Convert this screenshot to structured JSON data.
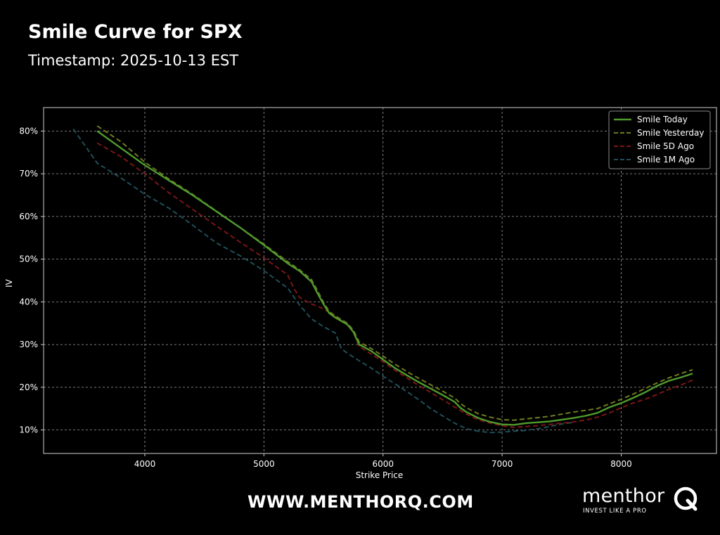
{
  "header": {
    "title": "Smile Curve for SPX",
    "subtitle": "Timestamp: 2025-10-13 EST"
  },
  "footer": {
    "url": "WWW.MENTHORQ.COM",
    "brand_name": "menthor",
    "brand_tagline": "INVEST LIKE A PRO",
    "brand_logo": "q-magnifier-logo-icon"
  },
  "colors": {
    "background": "#000000",
    "frame": "#d0d0d0",
    "grid": "#bdbdbd",
    "text": "#ffffff"
  },
  "chart_data": {
    "type": "line",
    "title": "",
    "xlabel": "Strike Price",
    "ylabel": "IV",
    "xlim": [
      3150,
      8800
    ],
    "ylim": [
      0.045,
      0.855
    ],
    "xticks": [
      4000,
      5000,
      6000,
      7000,
      8000
    ],
    "xtick_labels": [
      "4000",
      "5000",
      "6000",
      "7000",
      "8000"
    ],
    "yticks": [
      0.1,
      0.2,
      0.3,
      0.4,
      0.5,
      0.6,
      0.7,
      0.8
    ],
    "ytick_labels": [
      "10%",
      "20%",
      "30%",
      "40%",
      "50%",
      "60%",
      "70%",
      "80%"
    ],
    "grid": true,
    "grid_style": "dashed",
    "legend_position": "top-right",
    "series": [
      {
        "name": "Smile Today",
        "color": "#4f9a2c",
        "style": "solid",
        "points": [
          [
            3600,
            0.8
          ],
          [
            3800,
            0.76
          ],
          [
            4000,
            0.72
          ],
          [
            4200,
            0.685
          ],
          [
            4400,
            0.65
          ],
          [
            4600,
            0.612
          ],
          [
            4800,
            0.574
          ],
          [
            5000,
            0.533
          ],
          [
            5200,
            0.49
          ],
          [
            5300,
            0.472
          ],
          [
            5400,
            0.447
          ],
          [
            5450,
            0.42
          ],
          [
            5500,
            0.395
          ],
          [
            5550,
            0.373
          ],
          [
            5600,
            0.363
          ],
          [
            5700,
            0.347
          ],
          [
            5750,
            0.33
          ],
          [
            5800,
            0.3
          ],
          [
            5900,
            0.285
          ],
          [
            6000,
            0.265
          ],
          [
            6100,
            0.245
          ],
          [
            6200,
            0.228
          ],
          [
            6300,
            0.212
          ],
          [
            6400,
            0.197
          ],
          [
            6500,
            0.182
          ],
          [
            6600,
            0.166
          ],
          [
            6650,
            0.152
          ],
          [
            6700,
            0.142
          ],
          [
            6800,
            0.128
          ],
          [
            6900,
            0.119
          ],
          [
            7000,
            0.113
          ],
          [
            7100,
            0.112
          ],
          [
            7200,
            0.116
          ],
          [
            7300,
            0.118
          ],
          [
            7400,
            0.12
          ],
          [
            7500,
            0.124
          ],
          [
            7600,
            0.128
          ],
          [
            7700,
            0.133
          ],
          [
            7800,
            0.14
          ],
          [
            7900,
            0.153
          ],
          [
            8000,
            0.163
          ],
          [
            8100,
            0.175
          ],
          [
            8200,
            0.188
          ],
          [
            8300,
            0.203
          ],
          [
            8400,
            0.215
          ],
          [
            8500,
            0.223
          ],
          [
            8600,
            0.232
          ]
        ]
      },
      {
        "name": "Smile Yesterday",
        "color": "#6f7a1e",
        "style": "dashed",
        "points": [
          [
            3600,
            0.812
          ],
          [
            3800,
            0.775
          ],
          [
            4000,
            0.727
          ],
          [
            4200,
            0.688
          ],
          [
            4400,
            0.652
          ],
          [
            4600,
            0.613
          ],
          [
            4800,
            0.574
          ],
          [
            5000,
            0.535
          ],
          [
            5200,
            0.494
          ],
          [
            5300,
            0.475
          ],
          [
            5400,
            0.452
          ],
          [
            5450,
            0.426
          ],
          [
            5500,
            0.399
          ],
          [
            5550,
            0.377
          ],
          [
            5600,
            0.367
          ],
          [
            5700,
            0.35
          ],
          [
            5750,
            0.334
          ],
          [
            5800,
            0.306
          ],
          [
            5900,
            0.291
          ],
          [
            6000,
            0.273
          ],
          [
            6100,
            0.254
          ],
          [
            6200,
            0.237
          ],
          [
            6300,
            0.221
          ],
          [
            6400,
            0.206
          ],
          [
            6500,
            0.191
          ],
          [
            6600,
            0.175
          ],
          [
            6650,
            0.162
          ],
          [
            6700,
            0.152
          ],
          [
            6800,
            0.138
          ],
          [
            6900,
            0.13
          ],
          [
            7000,
            0.124
          ],
          [
            7100,
            0.123
          ],
          [
            7200,
            0.126
          ],
          [
            7300,
            0.129
          ],
          [
            7400,
            0.132
          ],
          [
            7500,
            0.137
          ],
          [
            7600,
            0.142
          ],
          [
            7700,
            0.146
          ],
          [
            7800,
            0.15
          ],
          [
            7900,
            0.161
          ],
          [
            8000,
            0.172
          ],
          [
            8100,
            0.184
          ],
          [
            8200,
            0.197
          ],
          [
            8300,
            0.21
          ],
          [
            8400,
            0.222
          ],
          [
            8500,
            0.232
          ],
          [
            8600,
            0.241
          ]
        ]
      },
      {
        "name": "Smile 5D Ago",
        "color": "#7a1616",
        "style": "dashed",
        "points": [
          [
            3600,
            0.772
          ],
          [
            3800,
            0.74
          ],
          [
            4000,
            0.7
          ],
          [
            4200,
            0.656
          ],
          [
            4400,
            0.617
          ],
          [
            4600,
            0.578
          ],
          [
            4800,
            0.54
          ],
          [
            5000,
            0.503
          ],
          [
            5200,
            0.463
          ],
          [
            5250,
            0.432
          ],
          [
            5300,
            0.41
          ],
          [
            5400,
            0.395
          ],
          [
            5500,
            0.384
          ],
          [
            5600,
            0.365
          ],
          [
            5700,
            0.348
          ],
          [
            5750,
            0.33
          ],
          [
            5800,
            0.295
          ],
          [
            5900,
            0.278
          ],
          [
            6000,
            0.26
          ],
          [
            6100,
            0.24
          ],
          [
            6200,
            0.222
          ],
          [
            6300,
            0.204
          ],
          [
            6400,
            0.188
          ],
          [
            6500,
            0.171
          ],
          [
            6600,
            0.154
          ],
          [
            6700,
            0.137
          ],
          [
            6800,
            0.124
          ],
          [
            6900,
            0.116
          ],
          [
            7000,
            0.11
          ],
          [
            7100,
            0.106
          ],
          [
            7200,
            0.108
          ],
          [
            7300,
            0.11
          ],
          [
            7400,
            0.113
          ],
          [
            7500,
            0.116
          ],
          [
            7600,
            0.119
          ],
          [
            7700,
            0.123
          ],
          [
            7800,
            0.13
          ],
          [
            7900,
            0.14
          ],
          [
            8000,
            0.152
          ],
          [
            8100,
            0.163
          ],
          [
            8200,
            0.172
          ],
          [
            8300,
            0.183
          ],
          [
            8400,
            0.195
          ],
          [
            8500,
            0.205
          ],
          [
            8600,
            0.217
          ]
        ]
      },
      {
        "name": "Smile 1M Ago",
        "color": "#1f4f58",
        "style": "dashed",
        "points": [
          [
            3400,
            0.805
          ],
          [
            3500,
            0.765
          ],
          [
            3600,
            0.725
          ],
          [
            3800,
            0.69
          ],
          [
            4000,
            0.652
          ],
          [
            4200,
            0.62
          ],
          [
            4400,
            0.58
          ],
          [
            4600,
            0.538
          ],
          [
            4800,
            0.508
          ],
          [
            5000,
            0.473
          ],
          [
            5200,
            0.432
          ],
          [
            5300,
            0.392
          ],
          [
            5400,
            0.36
          ],
          [
            5500,
            0.342
          ],
          [
            5600,
            0.327
          ],
          [
            5650,
            0.29
          ],
          [
            5700,
            0.28
          ],
          [
            5800,
            0.262
          ],
          [
            5900,
            0.245
          ],
          [
            6000,
            0.226
          ],
          [
            6100,
            0.208
          ],
          [
            6200,
            0.19
          ],
          [
            6300,
            0.171
          ],
          [
            6400,
            0.15
          ],
          [
            6500,
            0.133
          ],
          [
            6600,
            0.116
          ],
          [
            6700,
            0.103
          ],
          [
            6800,
            0.097
          ],
          [
            6900,
            0.094
          ],
          [
            7000,
            0.095
          ],
          [
            7100,
            0.097
          ],
          [
            7200,
            0.099
          ],
          [
            7300,
            0.103
          ],
          [
            7400,
            0.108
          ],
          [
            7500,
            0.114
          ],
          [
            7600,
            0.118
          ]
        ]
      }
    ]
  }
}
